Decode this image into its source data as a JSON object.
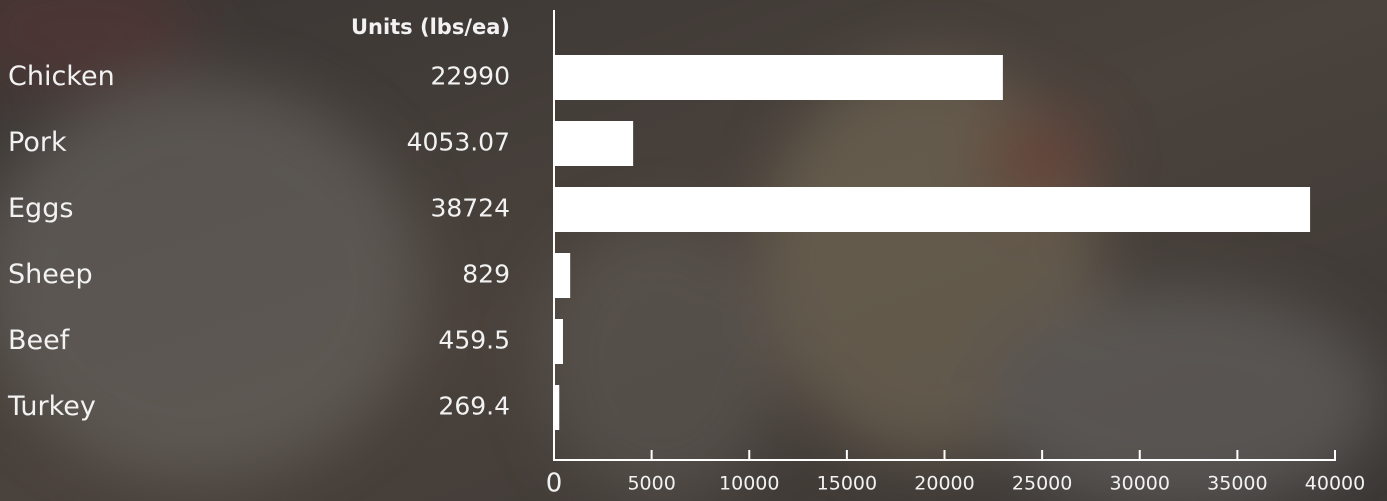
{
  "chart_data": {
    "type": "bar",
    "orientation": "horizontal",
    "value_column_label": "Units (lbs/ea)",
    "categories": [
      "Chicken",
      "Pork",
      "Eggs",
      "Sheep",
      "Beef",
      "Turkey"
    ],
    "values": [
      22990,
      4053.07,
      38724,
      829,
      459.5,
      269.4
    ],
    "color": "#ffffff",
    "xlim": [
      0,
      40000
    ],
    "xticks": [
      0,
      5000,
      10000,
      15000,
      20000,
      25000,
      30000,
      35000,
      40000
    ],
    "grid": false
  }
}
